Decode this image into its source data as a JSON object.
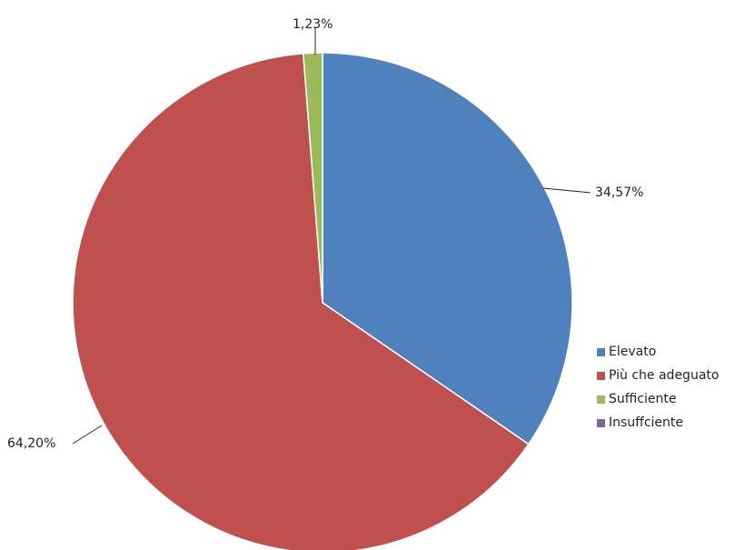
{
  "chart_data": {
    "type": "pie",
    "slices": [
      {
        "label": "Elevato",
        "value": 34.57,
        "display": "34,57%",
        "color": "#4f81bd"
      },
      {
        "label": "Più che adeguato",
        "value": 64.2,
        "display": "64,20%",
        "color": "#c0504d"
      },
      {
        "label": "Sufficiente",
        "value": 1.23,
        "display": "1,23%",
        "color": "#9bbb59"
      },
      {
        "label": "Insuffciente",
        "value": 0,
        "display": "",
        "color": "#8064a2"
      }
    ],
    "legend_position": "right"
  }
}
